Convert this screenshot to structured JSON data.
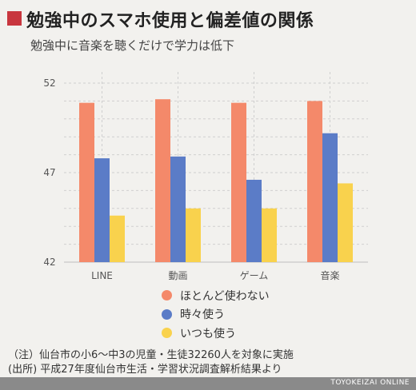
{
  "header": {
    "title": "勉強中のスマホ使用と偏差値の関係",
    "subtitle": "勉強中に音楽を聴くだけで学力は低下"
  },
  "chart_data": {
    "type": "bar",
    "categories": [
      "LINE",
      "動画",
      "ゲーム",
      "音楽"
    ],
    "series": [
      {
        "name": "ほとんど使わない",
        "color": "#f4896a",
        "values": [
          50.9,
          51.1,
          50.9,
          51.0
        ]
      },
      {
        "name": "時々使う",
        "color": "#5b7cc7",
        "values": [
          47.8,
          47.9,
          46.6,
          49.2
        ]
      },
      {
        "name": "いつも使う",
        "color": "#f9d24d",
        "values": [
          44.6,
          45.0,
          45.0,
          46.4
        ]
      }
    ],
    "yticks": [
      42,
      47,
      52
    ],
    "ylim": [
      42,
      52
    ],
    "grid": true,
    "legend_position": "bottom"
  },
  "notes": {
    "note1": "（注）仙台市の小6～中3の児童・生徒32260人を対象に実施",
    "note2": "(出所) 平成27年度仙台市生活・学習状況調査解析結果より"
  },
  "footer": {
    "brand": "TOYOKEIZAI ONLINE"
  }
}
